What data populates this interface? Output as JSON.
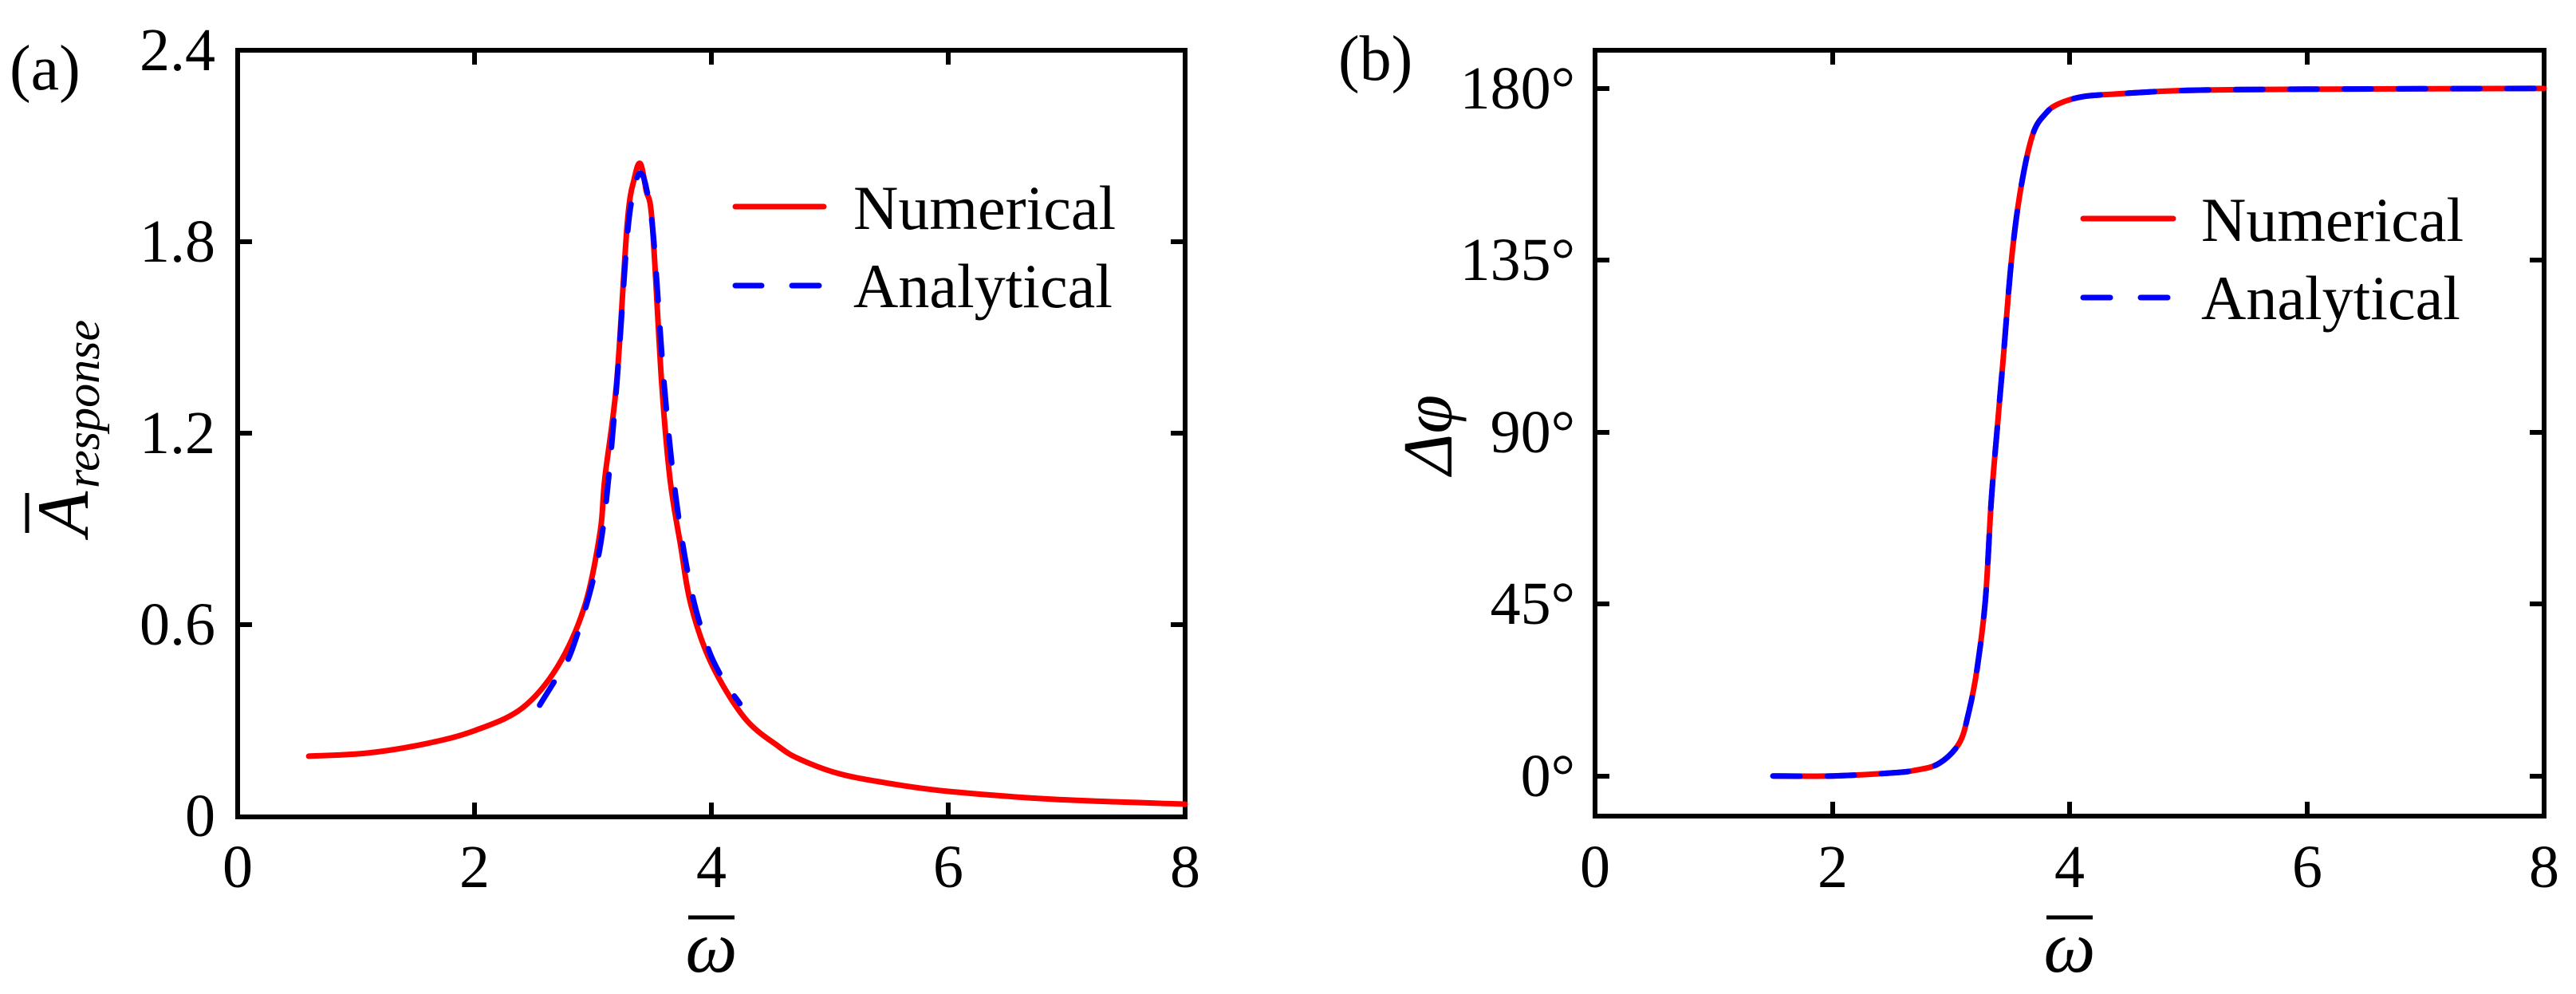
{
  "figure": {
    "panels": [
      {
        "tag": "(a)",
        "ylabel_main": "A",
        "ylabel_sub": "response",
        "xlabel": "ω",
        "xticks": [
          "0",
          "2",
          "4",
          "6",
          "8"
        ],
        "yticks": [
          "0",
          "0.6",
          "1.2",
          "1.8",
          "2.4"
        ],
        "legend": [
          "Numerical",
          "Analytical"
        ]
      },
      {
        "tag": "(b)",
        "ylabel_main": "Δφ",
        "xlabel": "ω",
        "xticks": [
          "0",
          "2",
          "4",
          "6",
          "8"
        ],
        "yticks": [
          "0°",
          "45°",
          "90°",
          "135°",
          "180°"
        ],
        "legend": [
          "Numerical",
          "Analytical"
        ]
      }
    ],
    "colors": {
      "numerical": "#ff0000",
      "analytical": "#0000ff",
      "axes": "#000000"
    }
  },
  "chart_data": [
    {
      "type": "line",
      "title": "(a)",
      "xlabel": "ω̄",
      "ylabel": "Ā_response",
      "xlim": [
        0,
        8
      ],
      "ylim": [
        0,
        2.4
      ],
      "xticks": [
        0,
        2,
        4,
        6,
        8
      ],
      "yticks": [
        0,
        0.6,
        1.2,
        1.8,
        2.4
      ],
      "grid": false,
      "legend_position": "upper right",
      "series": [
        {
          "name": "Numerical",
          "style": "solid",
          "color": "#ff0000",
          "x": [
            0.6,
            1.1,
            1.6,
            2.0,
            2.4,
            2.7,
            2.93,
            3.06,
            3.1,
            3.2,
            3.29,
            3.35,
            3.4,
            3.45,
            3.5,
            3.58,
            3.65,
            3.74,
            3.83,
            4.0,
            4.28,
            4.57,
            4.75,
            5.08,
            5.5,
            6.0,
            6.9,
            8.0
          ],
          "y": [
            0.19,
            0.2,
            0.23,
            0.27,
            0.34,
            0.47,
            0.66,
            0.89,
            1.06,
            1.36,
            1.86,
            2.0,
            2.045,
            1.96,
            1.86,
            1.36,
            1.06,
            0.85,
            0.66,
            0.48,
            0.31,
            0.22,
            0.18,
            0.135,
            0.105,
            0.08,
            0.055,
            0.04
          ]
        },
        {
          "name": "Analytical",
          "style": "dashed",
          "color": "#0000ff",
          "x": [
            2.55,
            2.7,
            2.82,
            3.0,
            3.1,
            3.2,
            3.29,
            3.35,
            3.4,
            3.45,
            3.51,
            3.6,
            3.7,
            3.83,
            3.97,
            4.1,
            4.24
          ],
          "y": [
            0.35,
            0.44,
            0.52,
            0.74,
            0.95,
            1.35,
            1.82,
            1.97,
            2.015,
            1.97,
            1.82,
            1.36,
            1.0,
            0.71,
            0.53,
            0.43,
            0.355
          ]
        }
      ]
    },
    {
      "type": "line",
      "title": "(b)",
      "xlabel": "ω̄",
      "ylabel": "Δφ",
      "xlim": [
        0,
        8
      ],
      "ylim": [
        -10.5,
        190
      ],
      "xticks": [
        0,
        2,
        4,
        6,
        8
      ],
      "yticks": [
        0,
        45,
        90,
        135,
        180
      ],
      "ytick_labels": [
        "0°",
        "45°",
        "90°",
        "135°",
        "180°"
      ],
      "grid": false,
      "legend_position": "center right",
      "series": [
        {
          "name": "Numerical",
          "style": "solid",
          "color": "#ff0000",
          "x": [
            1.5,
            2.0,
            2.5,
            2.7,
            2.9,
            3.07,
            3.15,
            3.22,
            3.29,
            3.34,
            3.39,
            3.44,
            3.51,
            3.59,
            3.69,
            3.8,
            3.91,
            4.1,
            4.36,
            5.0,
            6.0,
            8.0
          ],
          "y": [
            0,
            0,
            0.8,
            1.5,
            3.3,
            8.6,
            16.7,
            28,
            46,
            72,
            91,
            109,
            135,
            154,
            168,
            173.5,
            176,
            177.8,
            178.5,
            179.5,
            179.8,
            180
          ]
        },
        {
          "name": "Analytical",
          "style": "dashed",
          "color": "#0000ff",
          "x": [
            1.5,
            2.0,
            2.5,
            2.7,
            2.9,
            3.07,
            3.15,
            3.22,
            3.29,
            3.34,
            3.39,
            3.44,
            3.51,
            3.59,
            3.69,
            3.8,
            3.91,
            4.1,
            4.36,
            5.0,
            6.0,
            8.0
          ],
          "y": [
            0,
            0,
            0.8,
            1.5,
            3.3,
            8.6,
            16.7,
            28,
            46,
            72,
            91,
            109,
            135,
            154,
            168,
            173.5,
            176,
            177.8,
            178.5,
            179.5,
            179.8,
            180
          ]
        }
      ]
    }
  ]
}
